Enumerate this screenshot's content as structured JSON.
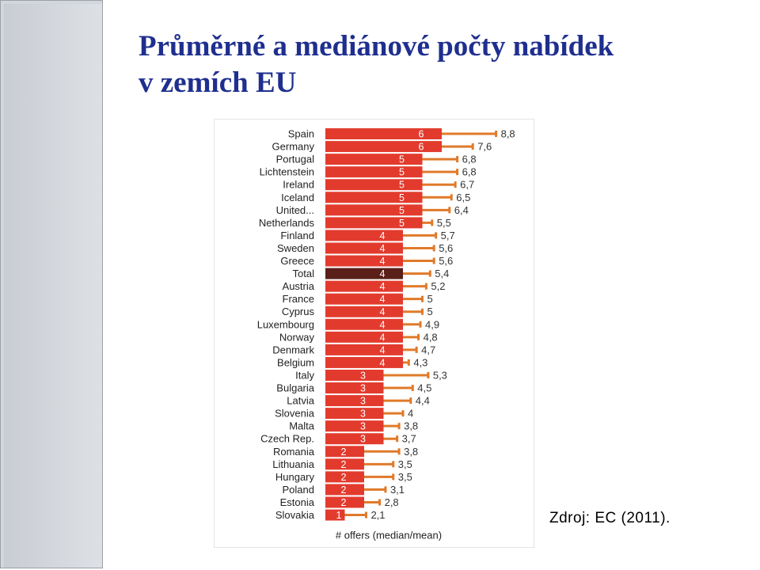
{
  "slide": {
    "title_line1": "Průměrné a mediánové počty nabídek",
    "title_line2": "v zemích EU",
    "source": "Zdroj: EC (2011)."
  },
  "colors": {
    "median_bar": "#e23b2e",
    "total_bar": "#5a1f19",
    "mean_marker": "#e07a2a",
    "title": "#1f2f8f"
  },
  "chart_data": {
    "type": "bar",
    "orientation": "horizontal",
    "title": "",
    "xlabel": "# offers (median/mean)",
    "ylabel": "",
    "categories": [
      "Spain",
      "Germany",
      "Portugal",
      "Lichtenstein",
      "Ireland",
      "Iceland",
      "United...",
      "Netherlands",
      "Finland",
      "Sweden",
      "Greece",
      "Total",
      "Austria",
      "France",
      "Cyprus",
      "Luxembourg",
      "Norway",
      "Denmark",
      "Belgium",
      "Italy",
      "Bulgaria",
      "Latvia",
      "Slovenia",
      "Malta",
      "Czech Rep.",
      "Romania",
      "Lithuania",
      "Hungary",
      "Poland",
      "Estonia",
      "Slovakia"
    ],
    "series": [
      {
        "name": "median",
        "values": [
          6,
          6,
          5,
          5,
          5,
          5,
          5,
          5,
          4,
          4,
          4,
          4,
          4,
          4,
          4,
          4,
          4,
          4,
          4,
          3,
          3,
          3,
          3,
          3,
          3,
          2,
          2,
          2,
          2,
          2,
          1
        ]
      },
      {
        "name": "mean",
        "values": [
          "8,8",
          "7,6",
          "6,8",
          "6,8",
          "6,7",
          "6,5",
          "6,4",
          "5,5",
          "5,7",
          "5,6",
          "5,6",
          "5,4",
          "5,2",
          "5",
          "5",
          "4,9",
          "4,8",
          "4,7",
          "4,3",
          "5,3",
          "4,5",
          "4,4",
          "4",
          "3,8",
          "3,7",
          "3,8",
          "3,5",
          "3,5",
          "3,1",
          "2,8",
          "2,1"
        ]
      }
    ],
    "highlight_category": "Total",
    "xlim": [
      0,
      10
    ],
    "legend": "none",
    "grid": false
  }
}
